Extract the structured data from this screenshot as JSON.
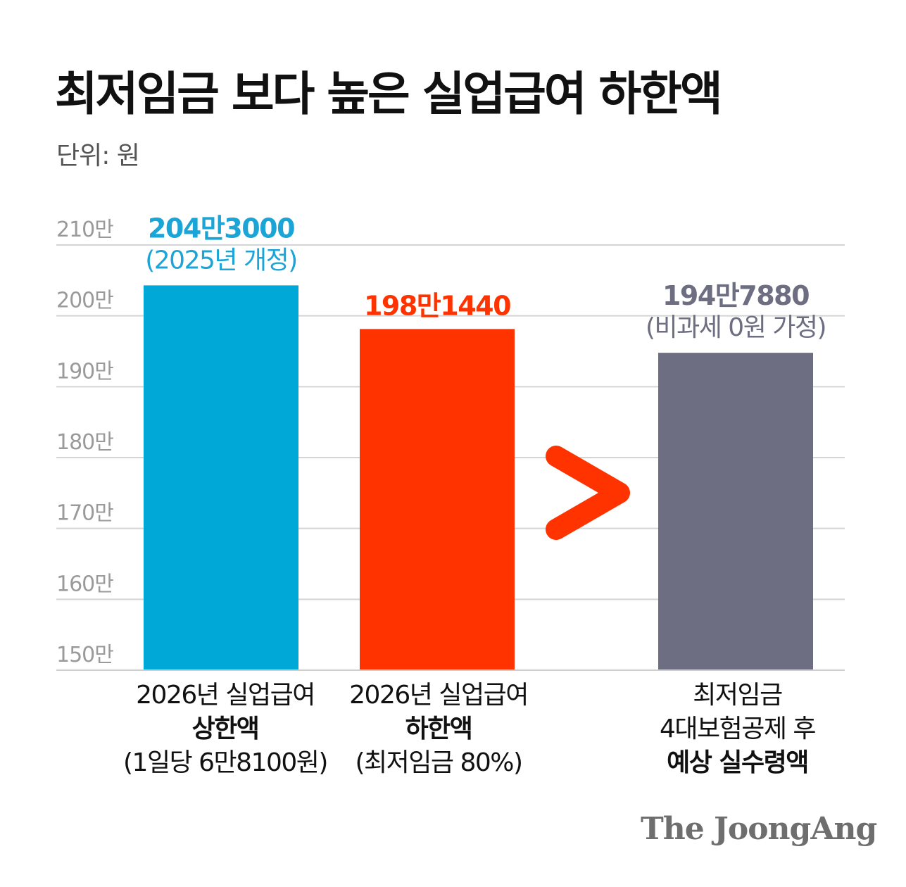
{
  "title": "최저임금 보다 높은 실업급여 하한액",
  "unit_label": "단위: 원",
  "chart_data": {
    "type": "bar",
    "categories": [
      "2026년 실업급여 상한액 (1일당 6만8100원)",
      "2026년 실업급여 하한액 (최저임금 80%)",
      "최저임금 4대보험공제 후 예상 실수령액"
    ],
    "values": [
      2043000,
      1981440,
      1947880
    ],
    "ylim": [
      1500000,
      2100000
    ],
    "yticks": [
      {
        "value": 2100000,
        "label": "210만"
      },
      {
        "value": 2000000,
        "label": "200만"
      },
      {
        "value": 1900000,
        "label": "190만"
      },
      {
        "value": 1800000,
        "label": "180만"
      },
      {
        "value": 1700000,
        "label": "170만"
      },
      {
        "value": 1600000,
        "label": "160만"
      },
      {
        "value": 1500000,
        "label": "150만"
      }
    ],
    "grid": true,
    "bars": [
      {
        "value": 2043000,
        "color": "#00a8d8",
        "label_main": "204만3000",
        "label_sub": "(2025년 개정)",
        "label_color": "#1aa5d6"
      },
      {
        "value": 1981440,
        "color": "#ff3300",
        "label_main": "198만1440",
        "label_sub": "",
        "label_color": "#ff3300"
      },
      {
        "value": 1947880,
        "color": "#6e6e82",
        "label_main": "194만7880",
        "label_sub": "(비과세 0원 가정)",
        "label_color": "#6e6e82"
      }
    ],
    "comparison_symbol_color": "#ff3300"
  },
  "category_labels": [
    {
      "line1": "2026년 실업급여",
      "line2": "상한액",
      "line3": "(1일당 6만8100원)"
    },
    {
      "line1": "2026년 실업급여",
      "line2": "하한액",
      "line3": "(최저임금 80%)"
    },
    {
      "line1": "최저임금",
      "line2": "4대보험공제 후",
      "line3": "예상 실수령액"
    }
  ],
  "source_logo": "The JoongAng"
}
